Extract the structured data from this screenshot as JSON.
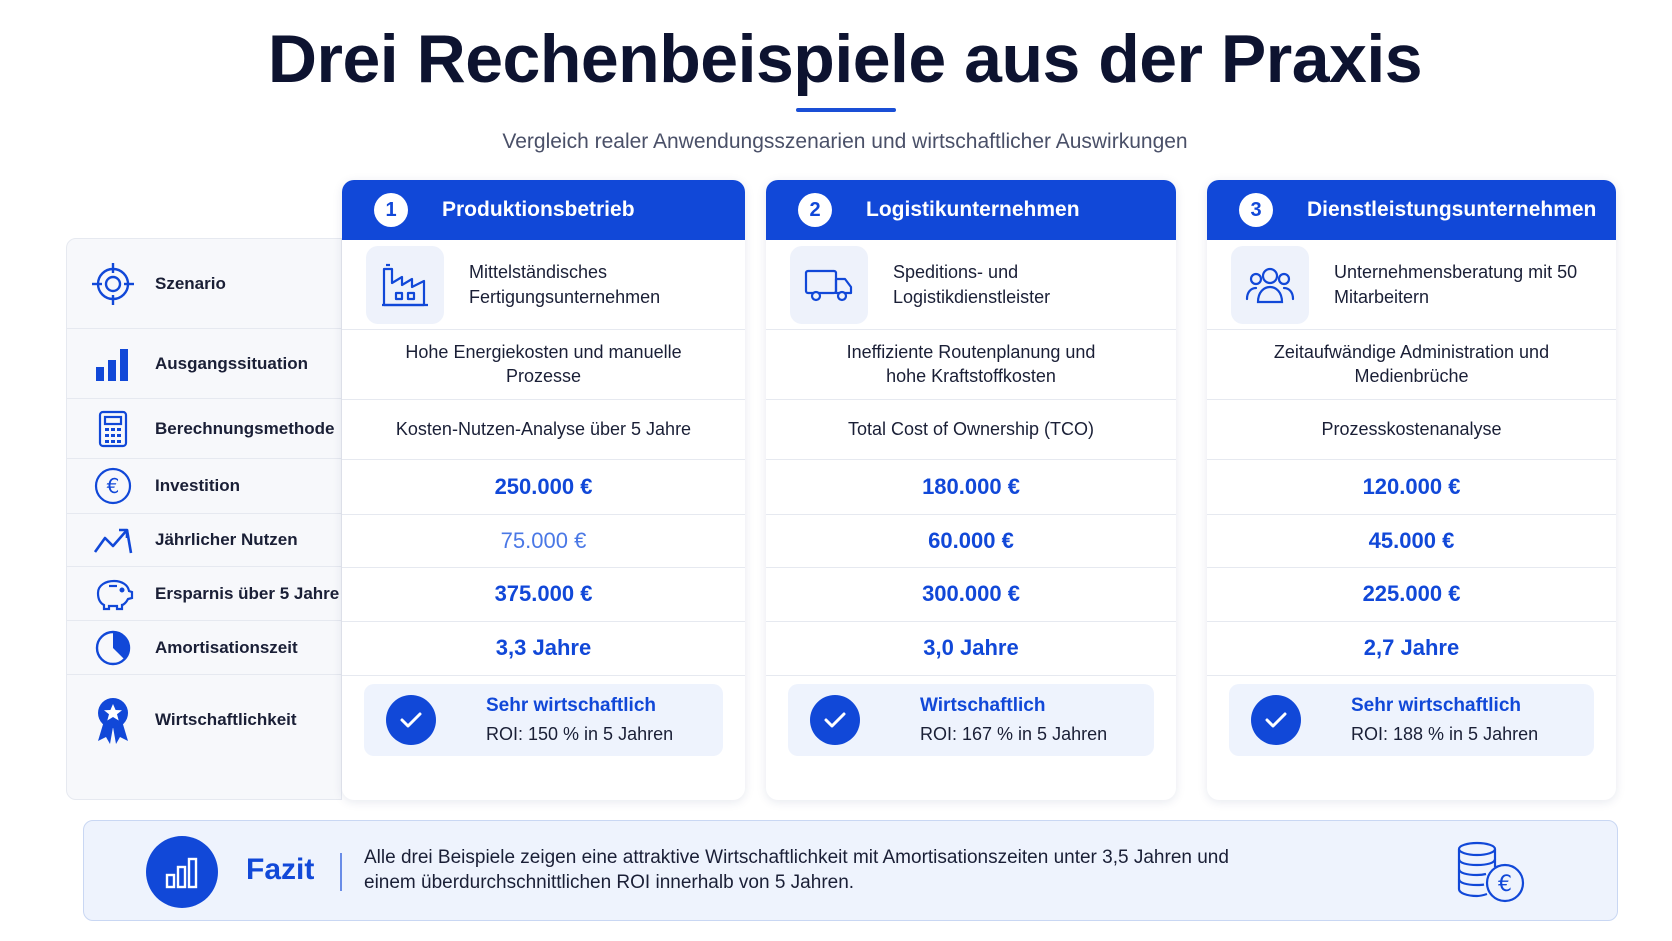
{
  "header": {
    "title": "Drei Rechenbeispiele aus der Praxis",
    "subtitle": "Vergleich realer Anwendungsszenarien und wirtschaftlicher Auswirkungen"
  },
  "rows": {
    "scenario": "Szenario",
    "baseline": "Ausgangssituation",
    "method": "Berechnungsmethode",
    "investment": "Investition",
    "annual_benefit": "Jährlicher Nutzen",
    "savings": "Ersparnis über 5 Jahre",
    "payback": "Amortisationszeit",
    "profitability": "Wirtschaftlichkeit"
  },
  "examples": [
    {
      "number": "1",
      "title": "Produktionsbetrieb",
      "scenario": "Mittelständisches Fertigungsunternehmen",
      "baseline": "Hohe Energiekosten und manuelle Prozesse",
      "method": "Kosten-Nutzen-Analyse über 5 Jahre",
      "investment": "250.000 €",
      "annual_benefit": "75.000 €",
      "savings": "375.000 €",
      "payback": "3,3 Jahre",
      "verdict": "Sehr wirtschaftlich",
      "roi": "ROI: 150 % in 5 Jahren"
    },
    {
      "number": "2",
      "title": "Logistikunternehmen",
      "scenario": "Speditions- und Logistikdienstleister",
      "baseline": "Ineffiziente Routenplanung und hohe Kraftstoffkosten",
      "method": "Total Cost of Ownership (TCO)",
      "investment": "180.000 €",
      "annual_benefit": "60.000 €",
      "savings": "300.000 €",
      "payback": "3,0 Jahre",
      "verdict": "Wirtschaftlich",
      "roi": "ROI: 167 % in 5 Jahren"
    },
    {
      "number": "3",
      "title": "Dienstleistungsunternehmen",
      "scenario": "Unternehmensberatung mit 50 Mitarbeitern",
      "baseline": "Zeitaufwändige Administration und Medienbrüche",
      "method": "Prozesskostenanalyse",
      "investment": "120.000 €",
      "annual_benefit": "45.000 €",
      "savings": "225.000 €",
      "payback": "2,7 Jahre",
      "verdict": "Sehr wirtschaftlich",
      "roi": "ROI: 188 % in 5 Jahren"
    }
  ],
  "fazit": {
    "label": "Fazit",
    "text": "Alle drei Beispiele zeigen eine attraktive Wirtschaftlichkeit mit Amortisationszeiten unter 3,5 Jahren und einem überdurchschnittlichen ROI innerhalb von 5 Jahren."
  },
  "colors": {
    "accent": "#1148d8",
    "accent_light": "#4a78e6",
    "panel_bg": "#eef3fd"
  },
  "icons": [
    "target-icon",
    "bar-chart-icon",
    "calculator-icon",
    "euro-circle-icon",
    "trend-icon",
    "piggy-bank-icon",
    "pie-clock-icon",
    "award-icon",
    "factory-icon",
    "truck-icon",
    "people-icon",
    "check-icon",
    "coins-euro-icon"
  ]
}
